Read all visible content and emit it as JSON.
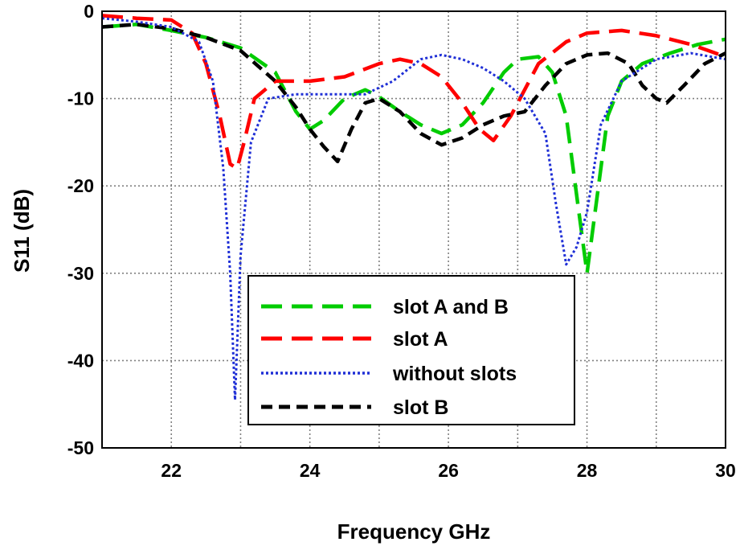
{
  "chart_data": {
    "type": "line",
    "xlabel": "Frequency GHz",
    "ylabel": "S11 (dB)",
    "xlim": [
      21,
      30
    ],
    "ylim": [
      -50,
      0
    ],
    "xticks": [
      "22",
      "24",
      "26",
      "28",
      "30"
    ],
    "yticks": [
      "0",
      "-10",
      "-20",
      "-30",
      "-40",
      "-50"
    ],
    "grid": true,
    "legend_position": "bottom-center",
    "series": [
      {
        "name": "slot A and B",
        "color": "#00cc00",
        "dash": "long-dash",
        "x": [
          21.0,
          21.5,
          22.0,
          22.5,
          23.0,
          23.5,
          23.8,
          24.0,
          24.2,
          24.5,
          24.8,
          25.0,
          25.3,
          25.6,
          25.9,
          26.2,
          26.5,
          26.8,
          27.0,
          27.3,
          27.5,
          27.7,
          27.85,
          28.0,
          28.15,
          28.3,
          28.5,
          28.8,
          29.2,
          29.6,
          30.0
        ],
        "y": [
          -1.8,
          -1.5,
          -2.2,
          -3.0,
          -4.2,
          -7.0,
          -11.5,
          -13.5,
          -12.5,
          -10.0,
          -9.0,
          -9.8,
          -11.5,
          -13.0,
          -14.0,
          -13.0,
          -10.5,
          -7.0,
          -5.5,
          -5.2,
          -7.0,
          -12.0,
          -21.0,
          -30.0,
          -21.0,
          -12.0,
          -8.0,
          -6.0,
          -4.8,
          -3.8,
          -3.2
        ]
      },
      {
        "name": "slot A",
        "color": "#ff0000",
        "dash": "long-dash",
        "x": [
          21.0,
          21.5,
          22.0,
          22.3,
          22.5,
          22.7,
          22.85,
          22.95,
          23.05,
          23.2,
          23.5,
          24.0,
          24.5,
          25.0,
          25.3,
          25.6,
          25.9,
          26.2,
          26.45,
          26.65,
          26.9,
          27.3,
          27.7,
          28.0,
          28.5,
          29.0,
          29.5,
          30.0
        ],
        "y": [
          -0.5,
          -0.8,
          -1.0,
          -2.5,
          -6.0,
          -12.0,
          -17.5,
          -18.0,
          -15.0,
          -10.0,
          -8.0,
          -8.0,
          -7.5,
          -6.0,
          -5.5,
          -6.0,
          -7.5,
          -10.5,
          -13.5,
          -14.8,
          -12.0,
          -6.0,
          -3.5,
          -2.5,
          -2.2,
          -2.8,
          -3.8,
          -5.2
        ]
      },
      {
        "name": "without slots",
        "color": "#1f2fd6",
        "dash": "dotted",
        "x": [
          21.0,
          21.5,
          22.0,
          22.4,
          22.6,
          22.75,
          22.85,
          22.92,
          23.0,
          23.15,
          23.4,
          23.8,
          24.3,
          24.8,
          25.2,
          25.6,
          25.9,
          26.2,
          26.5,
          26.8,
          27.1,
          27.4,
          27.55,
          27.7,
          27.85,
          28.0,
          28.2,
          28.5,
          29.0,
          29.5,
          30.0
        ],
        "y": [
          -0.8,
          -1.2,
          -1.8,
          -3.5,
          -8.0,
          -18.0,
          -30.0,
          -44.5,
          -28.0,
          -15.0,
          -10.0,
          -9.5,
          -9.5,
          -9.5,
          -8.0,
          -5.5,
          -5.0,
          -5.5,
          -6.5,
          -8.0,
          -10.0,
          -14.0,
          -22.0,
          -29.0,
          -27.0,
          -23.0,
          -13.0,
          -8.0,
          -5.5,
          -4.8,
          -5.5
        ]
      },
      {
        "name": "slot B",
        "color": "#000000",
        "dash": "short-dash",
        "x": [
          21.0,
          21.5,
          22.0,
          22.5,
          23.0,
          23.5,
          23.8,
          24.0,
          24.2,
          24.4,
          24.6,
          24.8,
          25.0,
          25.3,
          25.6,
          25.9,
          26.2,
          26.5,
          26.8,
          27.1,
          27.4,
          27.7,
          28.0,
          28.3,
          28.6,
          28.8,
          29.0,
          29.15,
          29.4,
          29.7,
          30.0
        ],
        "y": [
          -1.8,
          -1.5,
          -2.0,
          -3.0,
          -4.5,
          -8.0,
          -11.0,
          -13.5,
          -15.5,
          -17.2,
          -13.5,
          -10.5,
          -10.0,
          -11.5,
          -14.0,
          -15.3,
          -14.5,
          -13.0,
          -12.0,
          -11.5,
          -8.5,
          -6.0,
          -5.0,
          -4.8,
          -6.0,
          -8.5,
          -10.0,
          -10.5,
          -8.5,
          -6.0,
          -4.8
        ]
      }
    ]
  }
}
